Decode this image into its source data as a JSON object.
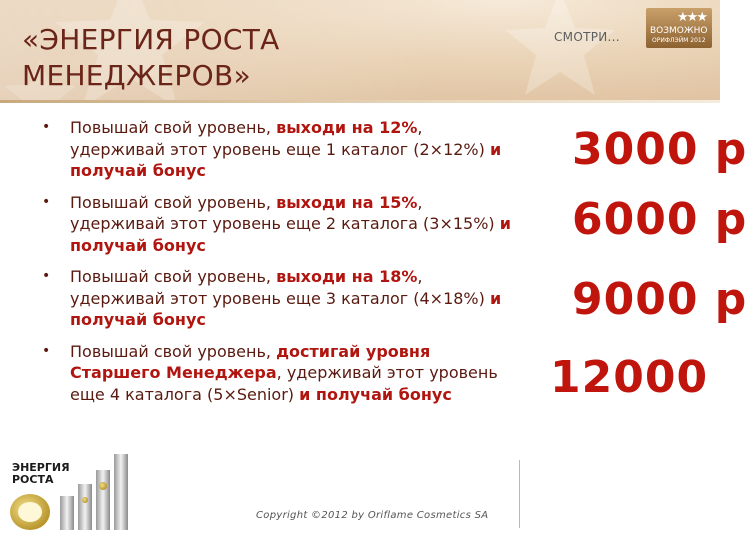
{
  "slide": {
    "title_line1": "«ЭНЕРГИЯ РОСТА",
    "title_line2": "МЕНЕДЖЕРОВ»"
  },
  "brand": {
    "text": "СМОТРИ...",
    "badge_line1": "ВОЗМОЖНО",
    "badge_line2": "ОРИФЛЭЙМ 2012"
  },
  "bullets": [
    {
      "pre": "Повышай свой уровень, ",
      "hl1": "выходи на 12%",
      "mid": ", удерживай этот уровень еще 1 каталог (2×12%) ",
      "hl2": "и получай бонус"
    },
    {
      "pre": "Повышай свой уровень, ",
      "hl1": "выходи на 15%",
      "mid": ", удерживай этот уровень еще 2 каталога (3×15%) ",
      "hl2": "и получай бонус"
    },
    {
      "pre": "Повышай свой уровень, ",
      "hl1": "выходи на 18%",
      "mid": ", удерживай этот уровень еще 3 каталог (4×18%) ",
      "hl2": "и получай бонус"
    },
    {
      "pre": "Повышай свой уровень, ",
      "hl1": "достигай уровня Старшего Менеджера",
      "mid": ", удерживай этот уровень еще 4 каталога (5×Senior) ",
      "hl2": "и получай бонус"
    }
  ],
  "bonuses": [
    "3000 р",
    "6000 р",
    "9000 р",
    "12000"
  ],
  "footer": {
    "copyright": "Copyright ©2012 by Oriflame Cosmetics SA",
    "logo_text_line1": "ЭНЕРГИЯ",
    "logo_text_line2": "РОСТА"
  },
  "colors": {
    "title": "#6a2418",
    "accent": "#c0150d",
    "body_text": "#5a1a10"
  }
}
